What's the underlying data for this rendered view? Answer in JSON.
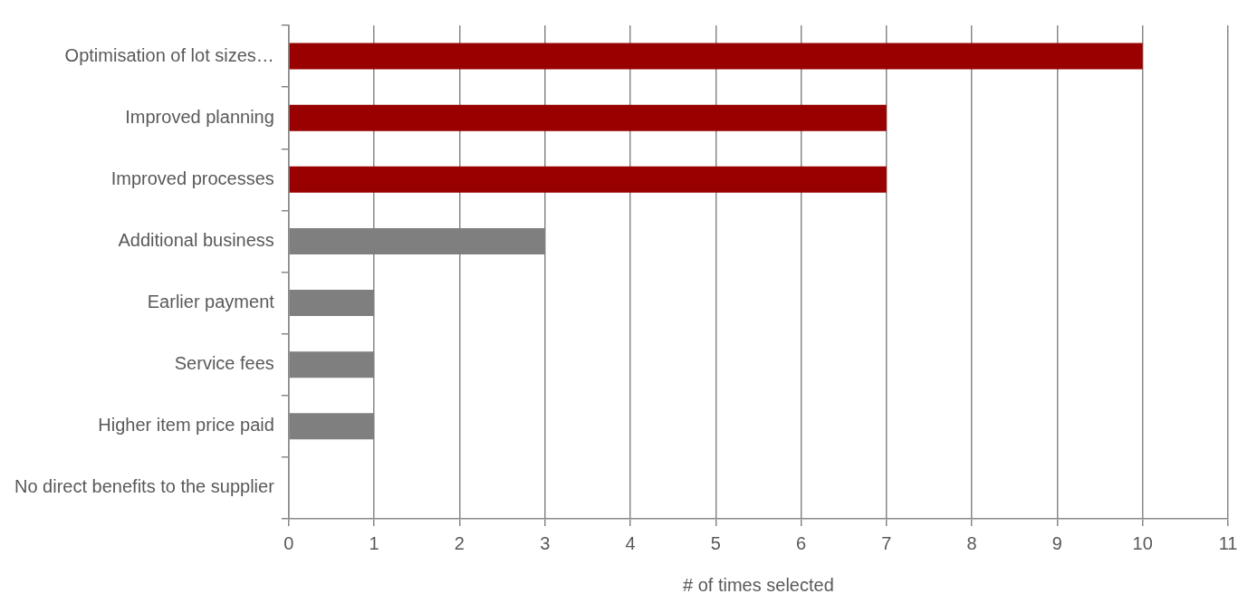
{
  "chart_data": {
    "type": "bar",
    "orientation": "horizontal",
    "xlabel": "# of times selected",
    "categories": [
      "Optimisation of lot sizes…",
      "Improved planning",
      "Improved processes",
      "Additional business",
      "Earlier payment",
      "Service fees",
      "Higher item price paid",
      "No direct benefits to the supplier"
    ],
    "values": [
      10,
      7,
      7,
      3,
      1,
      1,
      1,
      0
    ],
    "colors": [
      "#990000",
      "#990000",
      "#990000",
      "#7f7f7f",
      "#7f7f7f",
      "#7f7f7f",
      "#7f7f7f",
      "#7f7f7f"
    ],
    "xlim": [
      0,
      11
    ],
    "xticks": [
      0,
      1,
      2,
      3,
      4,
      5,
      6,
      7,
      8,
      9,
      10,
      11
    ],
    "grid": "x",
    "legend": false
  }
}
